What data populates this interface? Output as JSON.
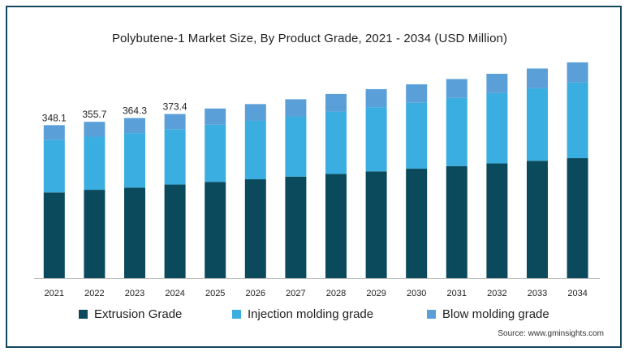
{
  "chart_data": {
    "type": "bar",
    "stacked": true,
    "title": "Polybutene-1 Market Size, By Product Grade, 2021 - 2034 (USD Million)",
    "categories": [
      "2021",
      "2022",
      "2023",
      "2024",
      "2025",
      "2026",
      "2027",
      "2028",
      "2029",
      "2030",
      "2031",
      "2032",
      "2033",
      "2034"
    ],
    "series": [
      {
        "name": "Extrusion Grade",
        "color": "#0b4a5c",
        "values": [
          195,
          201,
          206,
          213,
          219,
          225,
          231,
          237,
          243,
          249,
          255,
          261,
          267,
          273
        ]
      },
      {
        "name": "Injection molding grade",
        "color": "#3aaee0",
        "values": [
          120,
          121,
          124,
          126,
          130,
          133,
          137,
          142,
          146,
          150,
          155,
          160,
          165,
          172
        ]
      },
      {
        "name": "Blow molding grade",
        "color": "#5a9fd8",
        "values": [
          33.1,
          33.7,
          34.3,
          34.4,
          37,
          38,
          39,
          40,
          41,
          42,
          43,
          44,
          45,
          46
        ]
      }
    ],
    "data_labels": [
      "348.1",
      "355.7",
      "364.3",
      "373.4",
      "",
      "",
      "",
      "",
      "",
      "",
      "",
      "",
      "",
      ""
    ],
    "ylim": [
      0,
      530
    ],
    "xlabel": "",
    "ylabel": "",
    "grid": false,
    "legend_position": "bottom"
  },
  "source": "Source: www.gminsights.com"
}
